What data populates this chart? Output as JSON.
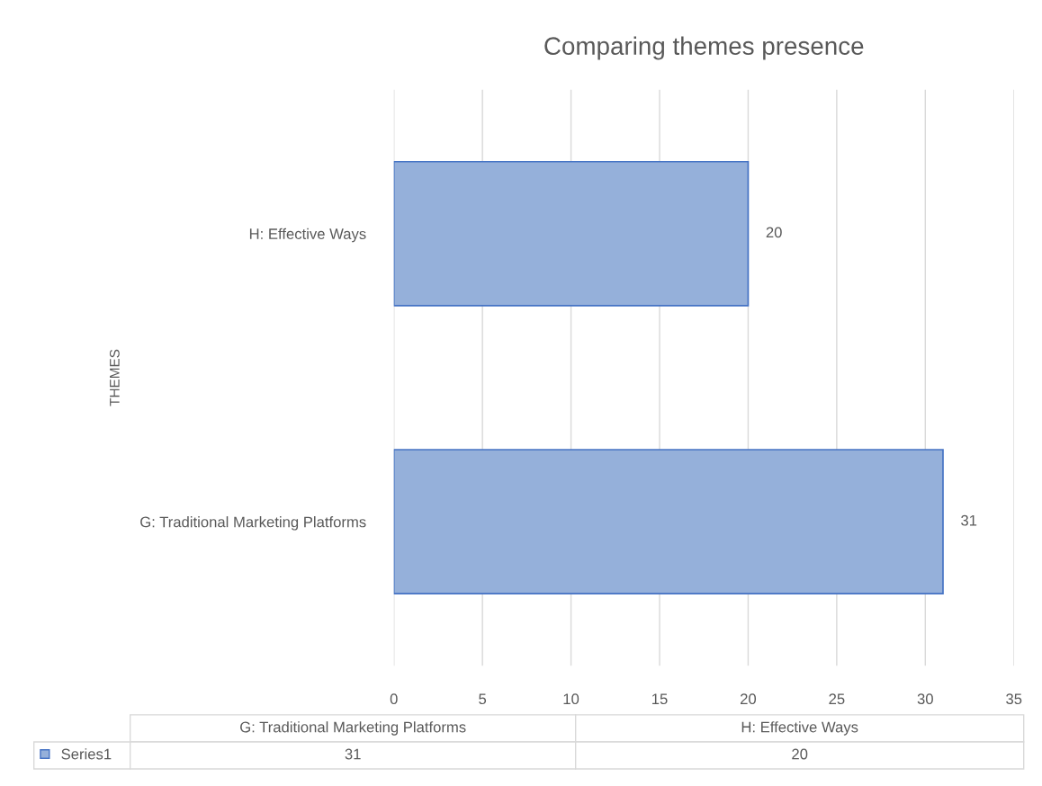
{
  "chart_data": {
    "type": "bar",
    "orientation": "horizontal",
    "title": "Comparing themes presence",
    "ylabel": "THEMES",
    "categories": [
      "H: Effective Ways",
      "G: Traditional Marketing Platforms"
    ],
    "series": [
      {
        "name": "Series1",
        "color": "#95b0da",
        "values": [
          20,
          31
        ]
      }
    ],
    "xlim": [
      0,
      35
    ],
    "xticks": [
      0,
      5,
      10,
      15,
      20,
      25,
      30,
      35
    ],
    "annotations": [
      "31",
      "20"
    ],
    "grid": "x",
    "legend": "bottom",
    "data_labels": true
  }
}
